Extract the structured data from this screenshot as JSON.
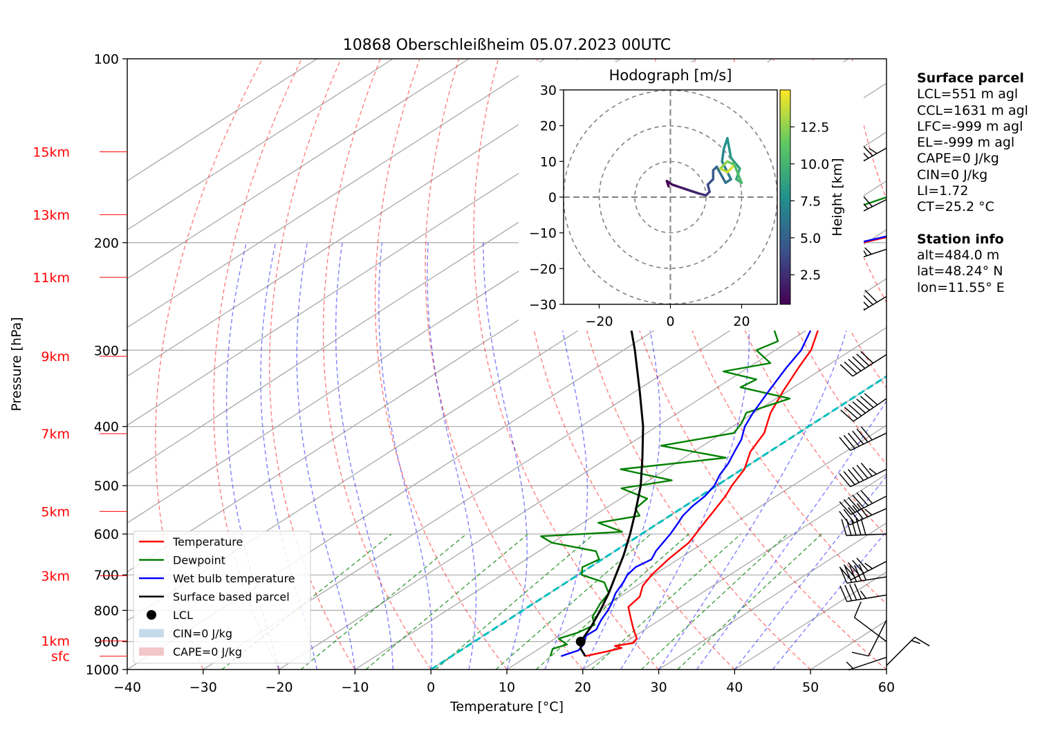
{
  "title": "10868 Oberschleißheim 05.07.2023 00UTC",
  "chart_data": {
    "type": "skew-t",
    "xlabel": "Temperature [°C]",
    "ylabel": "Pressure [hPa]",
    "xlim": [
      -40,
      60
    ],
    "ylim": [
      1000,
      100
    ],
    "x_ticks": [
      -40,
      -30,
      -20,
      -10,
      0,
      10,
      20,
      30,
      40,
      50,
      60
    ],
    "y_ticks": [
      100,
      200,
      300,
      400,
      500,
      600,
      700,
      800,
      900,
      1000
    ],
    "log_pressure_axis": true,
    "height_labels": [
      {
        "label": "15km",
        "p": 142
      },
      {
        "label": "13km",
        "p": 180
      },
      {
        "label": "11km",
        "p": 228
      },
      {
        "label": "9km",
        "p": 307
      },
      {
        "label": "7km",
        "p": 411
      },
      {
        "label": "5km",
        "p": 551
      },
      {
        "label": "3km",
        "p": 702
      },
      {
        "label": "1km",
        "p": 898
      },
      {
        "label": "sfc",
        "p": 951
      }
    ],
    "series": [
      {
        "name": "Temperature",
        "color": "#ff0000",
        "points": [
          [
            951,
            17.6
          ],
          [
            935,
            19.4
          ],
          [
            922,
            20.7
          ],
          [
            915,
            19.4
          ],
          [
            905,
            21.2
          ],
          [
            890,
            20.8
          ],
          [
            860,
            18.5
          ],
          [
            820,
            15.5
          ],
          [
            790,
            13.2
          ],
          [
            760,
            12.6
          ],
          [
            730,
            10.8
          ],
          [
            700,
            9.7
          ],
          [
            660,
            8.7
          ],
          [
            620,
            8.0
          ],
          [
            580,
            6.2
          ],
          [
            550,
            4.8
          ],
          [
            520,
            3.3
          ],
          [
            500,
            2.0
          ],
          [
            470,
            0.3
          ],
          [
            440,
            -2.5
          ],
          [
            410,
            -4.5
          ],
          [
            380,
            -7.8
          ],
          [
            350,
            -10.6
          ],
          [
            320,
            -13.4
          ],
          [
            300,
            -15.3
          ],
          [
            280,
            -18.2
          ],
          [
            260,
            -21.2
          ],
          [
            240,
            -24.8
          ],
          [
            225,
            -27.5
          ],
          [
            210,
            -30.2
          ],
          [
            200,
            -30.5
          ],
          [
            195,
            -28.0
          ],
          [
            190,
            -24.0
          ],
          [
            185,
            -21.5
          ],
          [
            180,
            -18.5
          ],
          [
            175,
            -15.0
          ],
          [
            170,
            -12.6
          ],
          [
            160,
            -9.6
          ],
          [
            150,
            -5.9
          ],
          [
            145,
            -3.9
          ],
          [
            140,
            -1.8
          ],
          [
            135,
            0.6
          ],
          [
            130,
            3.0
          ],
          [
            125,
            5.8
          ],
          [
            120,
            8.8
          ]
        ]
      },
      {
        "name": "Dewpoint",
        "color": "#008000",
        "points": [
          [
            951,
            13.0
          ],
          [
            940,
            12.5
          ],
          [
            925,
            11.8
          ],
          [
            910,
            12.8
          ],
          [
            890,
            10.5
          ],
          [
            870,
            11.8
          ],
          [
            845,
            12.4
          ],
          [
            820,
            10.5
          ],
          [
            780,
            8.8
          ],
          [
            750,
            7.8
          ],
          [
            720,
            5.0
          ],
          [
            700,
            0.5
          ],
          [
            680,
            -1.0
          ],
          [
            660,
            -0.4
          ],
          [
            640,
            -2.5
          ],
          [
            620,
            -10.0
          ],
          [
            605,
            -12.8
          ],
          [
            595,
            -3.0
          ],
          [
            575,
            -8.0
          ],
          [
            560,
            -4.0
          ],
          [
            545,
            -6.0
          ],
          [
            525,
            -6.5
          ],
          [
            505,
            -12.0
          ],
          [
            490,
            -7.0
          ],
          [
            470,
            -16.0
          ],
          [
            450,
            -4.5
          ],
          [
            430,
            -15.5
          ],
          [
            410,
            -8.5
          ],
          [
            395,
            -9.5
          ],
          [
            380,
            -11.0
          ],
          [
            360,
            -8.2
          ],
          [
            345,
            -17.0
          ],
          [
            335,
            -16.5
          ],
          [
            325,
            -22.5
          ],
          [
            315,
            -18.0
          ],
          [
            300,
            -22.5
          ],
          [
            290,
            -21.5
          ],
          [
            275,
            -25.0
          ],
          [
            262,
            -23.5
          ],
          [
            250,
            -24.5
          ],
          [
            240,
            -27.0
          ],
          [
            228,
            -28.0
          ],
          [
            215,
            -30.0
          ],
          [
            205,
            -30.8
          ],
          [
            200,
            -32.5
          ],
          [
            195,
            -40.8
          ],
          [
            188,
            -42.5
          ],
          [
            182,
            -41.0
          ],
          [
            175,
            -38.5
          ],
          [
            168,
            -36.5
          ],
          [
            160,
            -37.0
          ],
          [
            152,
            -36.0
          ],
          [
            145,
            -35.5
          ],
          [
            140,
            -34.5
          ]
        ]
      },
      {
        "name": "Wet bulb temperature",
        "color": "#0000ff",
        "points": [
          [
            951,
            14.4
          ],
          [
            930,
            15.5
          ],
          [
            910,
            15.0
          ],
          [
            880,
            13.5
          ],
          [
            860,
            13.6
          ],
          [
            830,
            12.3
          ],
          [
            800,
            11.2
          ],
          [
            780,
            10.3
          ],
          [
            750,
            8.7
          ],
          [
            720,
            7.5
          ],
          [
            700,
            6.5
          ],
          [
            680,
            6.0
          ],
          [
            660,
            6.5
          ],
          [
            640,
            5.4
          ],
          [
            620,
            4.6
          ],
          [
            600,
            3.8
          ],
          [
            580,
            2.8
          ],
          [
            560,
            1.7
          ],
          [
            540,
            1.0
          ],
          [
            520,
            0.6
          ],
          [
            500,
            -0.3
          ],
          [
            480,
            -1.8
          ],
          [
            460,
            -3.0
          ],
          [
            440,
            -4.6
          ],
          [
            420,
            -6.2
          ],
          [
            400,
            -8.4
          ],
          [
            380,
            -10.1
          ],
          [
            350,
            -12.5
          ],
          [
            320,
            -15.0
          ],
          [
            300,
            -16.6
          ],
          [
            280,
            -19.2
          ],
          [
            260,
            -22.0
          ],
          [
            240,
            -25.5
          ],
          [
            225,
            -28.0
          ],
          [
            210,
            -30.8
          ],
          [
            200,
            -31.0
          ],
          [
            195,
            -28.5
          ],
          [
            190,
            -25.0
          ],
          [
            185,
            -22.5
          ],
          [
            180,
            -19.2
          ],
          [
            175,
            -15.8
          ],
          [
            170,
            -13.4
          ],
          [
            160,
            -10.5
          ],
          [
            150,
            -6.8
          ],
          [
            145,
            -4.8
          ],
          [
            140,
            -2.8
          ],
          [
            135,
            -0.2
          ],
          [
            130,
            2.2
          ],
          [
            125,
            5.2
          ],
          [
            120,
            8.0
          ]
        ]
      },
      {
        "name": "Surface based parcel",
        "color": "#000000",
        "points": [
          [
            951,
            17.6
          ],
          [
            925,
            15.5
          ],
          [
            900,
            14.0
          ],
          [
            850,
            12.3
          ],
          [
            800,
            10.2
          ],
          [
            750,
            7.8
          ],
          [
            700,
            5.0
          ],
          [
            650,
            2.0
          ],
          [
            600,
            -1.5
          ],
          [
            550,
            -5.5
          ],
          [
            500,
            -10.0
          ],
          [
            450,
            -15.5
          ],
          [
            400,
            -21.8
          ],
          [
            350,
            -29.5
          ],
          [
            300,
            -38.5
          ],
          [
            250,
            -49.5
          ],
          [
            200,
            -62.0
          ],
          [
            170,
            -71.0
          ],
          [
            142,
            -80.0
          ]
        ]
      }
    ],
    "lcl": {
      "name": "LCL",
      "p": 900,
      "t": 14.0
    },
    "legend": {
      "placement": "lower-left",
      "items": [
        {
          "label": "Temperature",
          "kind": "line",
          "color": "#ff0000"
        },
        {
          "label": "Dewpoint",
          "kind": "line",
          "color": "#008000"
        },
        {
          "label": "Wet bulb temperature",
          "kind": "line",
          "color": "#0000ff"
        },
        {
          "label": "Surface based parcel",
          "kind": "line",
          "color": "#000000"
        },
        {
          "label": "LCL",
          "kind": "dot",
          "color": "#000000"
        },
        {
          "label": "CIN=0 J/kg",
          "kind": "patch",
          "color": "#c6dbea"
        },
        {
          "label": "CAPE=0 J/kg",
          "kind": "patch",
          "color": "#f3c7c9"
        }
      ]
    },
    "hodograph": {
      "title": "Hodograph [m/s]",
      "xlim": [
        -30,
        30
      ],
      "ylim": [
        -30,
        30
      ],
      "ticks": [
        -30,
        -20,
        -10,
        0,
        10,
        20,
        30
      ],
      "x_ticks": [
        -20,
        0,
        20
      ],
      "rings": [
        10,
        20,
        30
      ],
      "colorbar_label": "Height [km]",
      "colorbar_ticks": [
        2.5,
        5.0,
        7.5,
        10.0,
        12.5
      ],
      "colorbar_range": [
        0.5,
        15
      ],
      "points": [
        {
          "u": -0.5,
          "v": 3.0,
          "h": 0.5
        },
        {
          "u": -1.0,
          "v": 4.5,
          "h": 0.8
        },
        {
          "u": 0.5,
          "v": 3.5,
          "h": 1.0
        },
        {
          "u": 2.0,
          "v": 3.0,
          "h": 1.5
        },
        {
          "u": 5.0,
          "v": 2.0,
          "h": 2.0
        },
        {
          "u": 8.0,
          "v": 1.0,
          "h": 2.5
        },
        {
          "u": 10.0,
          "v": 0.5,
          "h": 3.0
        },
        {
          "u": 11.0,
          "v": 1.5,
          "h": 3.5
        },
        {
          "u": 10.5,
          "v": 3.5,
          "h": 4.0
        },
        {
          "u": 12.0,
          "v": 5.0,
          "h": 4.5
        },
        {
          "u": 12.0,
          "v": 7.5,
          "h": 5.0
        },
        {
          "u": 13.0,
          "v": 8.5,
          "h": 5.5
        },
        {
          "u": 15.5,
          "v": 4.0,
          "h": 6.0
        },
        {
          "u": 17.0,
          "v": 5.0,
          "h": 6.5
        },
        {
          "u": 14.5,
          "v": 10.0,
          "h": 7.0
        },
        {
          "u": 15.0,
          "v": 13.5,
          "h": 7.5
        },
        {
          "u": 16.0,
          "v": 16.5,
          "h": 8.0
        },
        {
          "u": 17.0,
          "v": 11.0,
          "h": 8.5
        },
        {
          "u": 19.5,
          "v": 8.0,
          "h": 9.0
        },
        {
          "u": 18.5,
          "v": 5.0,
          "h": 9.5
        },
        {
          "u": 20.0,
          "v": 4.0,
          "h": 10.5
        },
        {
          "u": 18.0,
          "v": 9.0,
          "h": 11.5
        },
        {
          "u": 16.0,
          "v": 10.0,
          "h": 12.5
        },
        {
          "u": 14.0,
          "v": 8.0,
          "h": 13.5
        },
        {
          "u": 16.0,
          "v": 7.0,
          "h": 14.2
        },
        {
          "u": 17.5,
          "v": 8.5,
          "h": 14.8
        }
      ]
    },
    "wind_barbs": [
      {
        "p": 140,
        "u": -30,
        "v": -17
      },
      {
        "p": 170,
        "u": -28,
        "v": -14
      },
      {
        "p": 205,
        "u": -27,
        "v": -9
      },
      {
        "p": 245,
        "u": -30,
        "v": -18
      },
      {
        "p": 305,
        "u": -25,
        "v": -16
      },
      {
        "p": 360,
        "u": -29,
        "v": -20
      },
      {
        "p": 410,
        "u": -27,
        "v": -13
      },
      {
        "p": 470,
        "u": -29,
        "v": -14
      },
      {
        "p": 520,
        "u": -27,
        "v": -14
      },
      {
        "p": 545,
        "u": -27,
        "v": -12
      },
      {
        "p": 600,
        "u": -26,
        "v": -1
      },
      {
        "p": 665,
        "u": -25,
        "v": -13
      },
      {
        "p": 705,
        "u": -25,
        "v": -4
      },
      {
        "p": 755,
        "u": -24,
        "v": -4
      },
      {
        "p": 830,
        "u": -2,
        "v": -4
      },
      {
        "p": 900,
        "u": -4,
        "v": 3
      },
      {
        "p": 955,
        "u": -3,
        "v": -1
      },
      {
        "p": 985,
        "u": 6,
        "v": 6
      }
    ]
  },
  "info": {
    "parcel_header": "Surface parcel",
    "parcel": [
      "LCL=551 m agl",
      "CCL=1631 m agl",
      "LFC=-999 m agl",
      "EL=-999 m agl",
      "CAPE=0 J/kg",
      "CIN=0 J/kg",
      "LI=1.72",
      "CT=25.2 °C"
    ],
    "station_header": "Station info",
    "station": [
      "alt=484.0 m",
      "lat=48.24° N",
      "lon=11.55° E"
    ]
  }
}
